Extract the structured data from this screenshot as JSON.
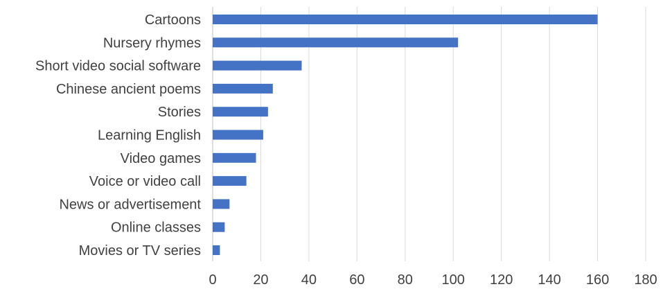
{
  "chart_data": {
    "type": "bar",
    "orientation": "horizontal",
    "categories": [
      "Cartoons",
      "Nursery rhymes",
      "Short video social software",
      "Chinese ancient poems",
      "Stories",
      "Learning English",
      "Video games",
      "Voice or video call",
      "News or advertisement",
      "Online classes",
      "Movies or TV series"
    ],
    "values": [
      160,
      102,
      37,
      25,
      23,
      21,
      18,
      14,
      7,
      5,
      3
    ],
    "title": "",
    "xlabel": "",
    "ylabel": "",
    "xlim": [
      0,
      180
    ],
    "xticks": [
      "0",
      "20",
      "40",
      "60",
      "80",
      "100",
      "120",
      "140",
      "160",
      "180"
    ],
    "grid": "vertical",
    "legend": "none",
    "bar_color": "#4472C4"
  }
}
